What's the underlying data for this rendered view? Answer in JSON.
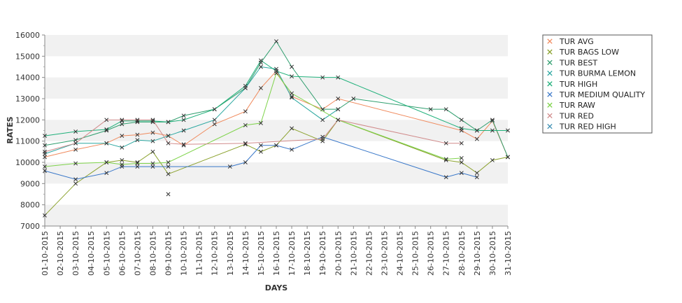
{
  "chart_data": {
    "type": "line",
    "title": "",
    "xlabel": "DAYS",
    "ylabel": "RATES",
    "ylim": [
      7000,
      16000
    ],
    "yticks": [
      7000,
      8000,
      9000,
      10000,
      11000,
      12000,
      13000,
      14000,
      15000,
      16000
    ],
    "grid": "alternating horizontal bands",
    "legend_position": "right",
    "categories": [
      "01-10-2015",
      "02-10-2015",
      "03-10-2015",
      "04-10-2015",
      "05-10-2015",
      "06-10-2015",
      "07-10-2015",
      "08-10-2015",
      "09-10-2015",
      "10-10-2015",
      "11-10-2015",
      "12-10-2015",
      "13-10-2015",
      "14-10-2015",
      "15-10-2015",
      "16-10-2015",
      "17-10-2015",
      "18-10-2015",
      "19-10-2015",
      "20-10-2015",
      "21-10-2015",
      "22-10-2015",
      "23-10-2015",
      "24-10-2015",
      "25-10-2015",
      "26-10-2015",
      "27-10-2015",
      "28-10-2015",
      "29-10-2015",
      "30-10-2015",
      "31-10-2015"
    ],
    "series": [
      {
        "name": "TUR AVG",
        "color": "#f08a5d",
        "points": [
          [
            1,
            10250
          ],
          [
            3,
            10600
          ],
          [
            5,
            10900
          ],
          [
            6,
            11250
          ],
          [
            7,
            11300
          ],
          [
            8,
            11400
          ],
          [
            9,
            11250
          ],
          [
            10,
            10800
          ],
          [
            12,
            11800
          ],
          [
            14,
            12400
          ],
          [
            15,
            13500
          ],
          [
            16,
            14300
          ],
          [
            17,
            13100
          ],
          [
            19,
            12500
          ],
          [
            20,
            13000
          ],
          [
            28,
            11500
          ],
          [
            29,
            11100
          ],
          [
            30,
            11950
          ],
          [
            31,
            10250
          ]
        ]
      },
      {
        "name": "TUR BAGS LOW",
        "color": "#8aa12c",
        "points": [
          [
            1,
            7500
          ],
          [
            3,
            9000
          ],
          [
            5,
            10000
          ],
          [
            6,
            10100
          ],
          [
            7,
            10000
          ],
          [
            8,
            10500
          ],
          [
            9,
            9450
          ],
          [
            14,
            10850
          ],
          [
            15,
            10500
          ],
          [
            16,
            10800
          ],
          [
            17,
            11600
          ],
          [
            19,
            11000
          ],
          [
            20,
            12000
          ],
          [
            27,
            10100
          ],
          [
            28,
            10000
          ],
          [
            29,
            9500
          ],
          [
            30,
            10100
          ],
          [
            31,
            10250
          ]
        ]
      },
      {
        "name": "TUR BEST",
        "color": "#2f9e6e",
        "points": [
          [
            1,
            10800
          ],
          [
            3,
            11050
          ],
          [
            5,
            11500
          ],
          [
            6,
            11800
          ],
          [
            7,
            11900
          ],
          [
            8,
            11900
          ],
          [
            9,
            11900
          ],
          [
            10,
            12200
          ],
          [
            12,
            12500
          ],
          [
            14,
            13500
          ],
          [
            15,
            14700
          ],
          [
            16,
            15700
          ],
          [
            17,
            14500
          ],
          [
            19,
            12500
          ],
          [
            20,
            12500
          ],
          [
            21,
            13000
          ],
          [
            26,
            12500
          ],
          [
            27,
            12500
          ],
          [
            28,
            12000
          ],
          [
            29,
            11500
          ],
          [
            30,
            12000
          ],
          [
            31,
            10250
          ]
        ]
      },
      {
        "name": "TUR BURMA LEMON",
        "color": "#2aa7a0",
        "points": [
          [
            1,
            10400
          ],
          [
            3,
            10900
          ],
          [
            5,
            10900
          ],
          [
            6,
            10700
          ],
          [
            7,
            11050
          ],
          [
            8,
            11000
          ],
          [
            9,
            11250
          ],
          [
            10,
            11500
          ],
          [
            12,
            12000
          ],
          [
            14,
            13500
          ],
          [
            15,
            14500
          ],
          [
            16,
            14400
          ],
          [
            17,
            13050
          ],
          [
            19,
            12000
          ],
          [
            20,
            12500
          ]
        ]
      },
      {
        "name": "TUR HIGH",
        "color": "#1fb07a",
        "points": [
          [
            1,
            11250
          ],
          [
            3,
            11450
          ],
          [
            5,
            11550
          ],
          [
            6,
            11950
          ],
          [
            7,
            11950
          ],
          [
            8,
            11950
          ],
          [
            9,
            11900
          ],
          [
            10,
            12000
          ],
          [
            12,
            12500
          ],
          [
            14,
            13600
          ],
          [
            15,
            14800
          ],
          [
            16,
            14300
          ],
          [
            17,
            14050
          ],
          [
            19,
            14000
          ],
          [
            20,
            14000
          ],
          [
            28,
            11600
          ],
          [
            29,
            11500
          ],
          [
            30,
            11500
          ],
          [
            31,
            11500
          ]
        ]
      },
      {
        "name": "TUR MEDIUM QUALITY",
        "color": "#3a78c9",
        "points": [
          [
            1,
            9600
          ],
          [
            3,
            9200
          ],
          [
            5,
            9500
          ],
          [
            6,
            9800
          ],
          [
            7,
            9800
          ],
          [
            8,
            9800
          ],
          [
            9,
            9800
          ],
          [
            13,
            9800
          ],
          [
            14,
            10000
          ],
          [
            15,
            10800
          ],
          [
            16,
            10800
          ],
          [
            17,
            10600
          ],
          [
            19,
            11200
          ],
          [
            27,
            9300
          ],
          [
            28,
            9500
          ],
          [
            29,
            9300
          ]
        ]
      },
      {
        "name": "TUR RAW",
        "color": "#7ed34a",
        "points": [
          [
            1,
            9800
          ],
          [
            3,
            9950
          ],
          [
            5,
            10000
          ],
          [
            6,
            9900
          ],
          [
            7,
            9950
          ],
          [
            8,
            9950
          ],
          [
            9,
            10000
          ],
          [
            14,
            11750
          ],
          [
            15,
            11850
          ],
          [
            16,
            14200
          ],
          [
            17,
            13250
          ],
          [
            20,
            12000
          ],
          [
            27,
            10150
          ],
          [
            28,
            10200
          ]
        ]
      },
      {
        "name": "TUR RED",
        "color": "#d08a8a",
        "points": [
          [
            1,
            10500
          ],
          [
            3,
            10900
          ],
          [
            5,
            12000
          ],
          [
            6,
            12000
          ],
          [
            7,
            12000
          ],
          [
            8,
            12000
          ],
          [
            9,
            10900
          ],
          [
            10,
            10850
          ],
          [
            14,
            10900
          ],
          [
            19,
            11100
          ],
          [
            20,
            12000
          ],
          [
            27,
            10900
          ],
          [
            28,
            10900
          ]
        ]
      },
      {
        "name": "TUR RED HIGH",
        "color": "#3d8fb3",
        "points": [
          [
            9,
            8500
          ]
        ]
      }
    ]
  }
}
